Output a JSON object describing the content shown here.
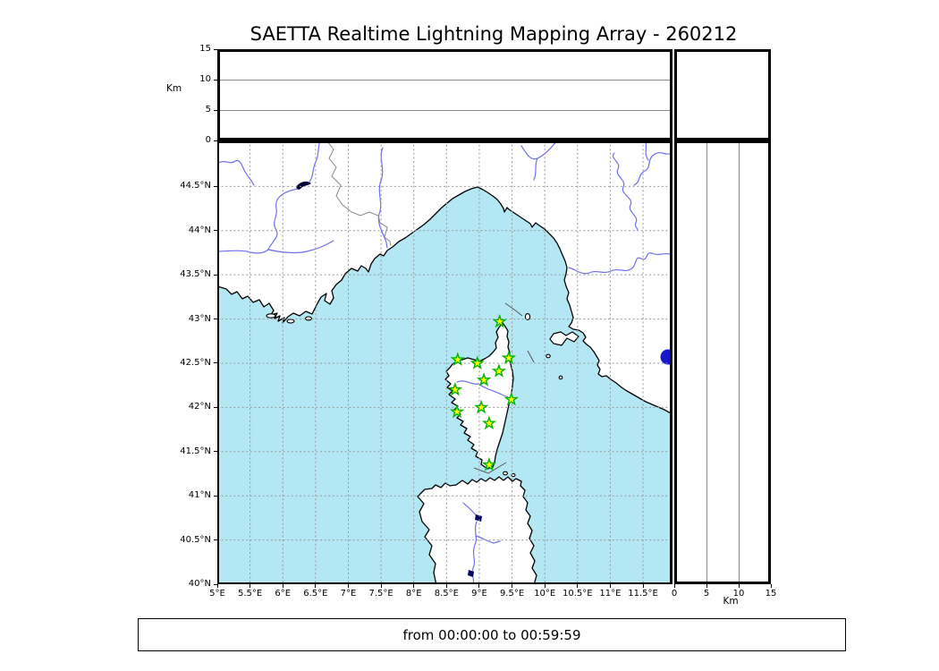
{
  "title": "SAETTA Realtime Lightning Mapping Array - 260212",
  "time_label": "from 00:00:00 to 00:59:59",
  "altitude_axis": {
    "label": "Km",
    "ticks": [
      {
        "value": 0,
        "label": "0"
      },
      {
        "value": 5,
        "label": "5"
      },
      {
        "value": 10,
        "label": "10"
      },
      {
        "value": 15,
        "label": "15"
      }
    ],
    "max": 15,
    "gridlines": [
      5,
      10
    ]
  },
  "colors": {
    "sea": "#b3e7f3",
    "land": "#ffffff",
    "coast": "#000000",
    "river": "#7070f0",
    "lake_dark": "#000038",
    "lake_blue": "#1717cf",
    "country_border": "#888888",
    "grid": "#999999",
    "station_fill": "#ffff00",
    "station_edge": "#00b400"
  },
  "chart_data": {
    "type": "scatter",
    "title": "SAETTA Realtime Lightning Mapping Array - 260212",
    "time_window": {
      "from": "00:00:00",
      "to": "00:59:59"
    },
    "axes": {
      "lon_range": [
        5.0,
        11.95
      ],
      "lat_range": [
        40.0,
        45.02
      ],
      "altitude_range_km": [
        0,
        15
      ],
      "grid": "dashed 0.5 degree graticule"
    },
    "x_ticks": [
      {
        "lon": 5.0,
        "label": "5°E"
      },
      {
        "lon": 5.5,
        "label": "5.5°E"
      },
      {
        "lon": 6.0,
        "label": "6°E"
      },
      {
        "lon": 6.5,
        "label": "6.5°E"
      },
      {
        "lon": 7.0,
        "label": "7°E"
      },
      {
        "lon": 7.5,
        "label": "7.5°E"
      },
      {
        "lon": 8.0,
        "label": "8°E"
      },
      {
        "lon": 8.5,
        "label": "8.5°E"
      },
      {
        "lon": 9.0,
        "label": "9°E"
      },
      {
        "lon": 9.5,
        "label": "9.5°E"
      },
      {
        "lon": 10.0,
        "label": "10°E"
      },
      {
        "lon": 10.5,
        "label": "10.5°E"
      },
      {
        "lon": 11.0,
        "label": "11°E"
      },
      {
        "lon": 11.5,
        "label": "11.5°E"
      }
    ],
    "y_ticks": [
      {
        "lat": 44.5,
        "label": "44.5°N"
      },
      {
        "lat": 44.0,
        "label": "44°N"
      },
      {
        "lat": 43.5,
        "label": "43.5°N"
      },
      {
        "lat": 43.0,
        "label": "43°N"
      },
      {
        "lat": 42.5,
        "label": "42.5°N"
      },
      {
        "lat": 42.0,
        "label": "42°N"
      },
      {
        "lat": 41.5,
        "label": "41.5°N"
      },
      {
        "lat": 41.0,
        "label": "41°N"
      },
      {
        "lat": 40.5,
        "label": "40.5°N"
      },
      {
        "lat": 40.0,
        "label": "40°N"
      }
    ],
    "stations": [
      {
        "lon": 9.31,
        "lat": 42.97
      },
      {
        "lon": 8.67,
        "lat": 42.54
      },
      {
        "lon": 8.97,
        "lat": 42.5
      },
      {
        "lon": 9.45,
        "lat": 42.56
      },
      {
        "lon": 9.3,
        "lat": 42.41
      },
      {
        "lon": 9.07,
        "lat": 42.31
      },
      {
        "lon": 8.63,
        "lat": 42.2
      },
      {
        "lon": 9.49,
        "lat": 42.09
      },
      {
        "lon": 9.03,
        "lat": 42.0
      },
      {
        "lon": 8.66,
        "lat": 41.95
      },
      {
        "lon": 9.15,
        "lat": 41.82
      },
      {
        "lon": 9.15,
        "lat": 41.35
      }
    ],
    "lightning_sources": []
  }
}
